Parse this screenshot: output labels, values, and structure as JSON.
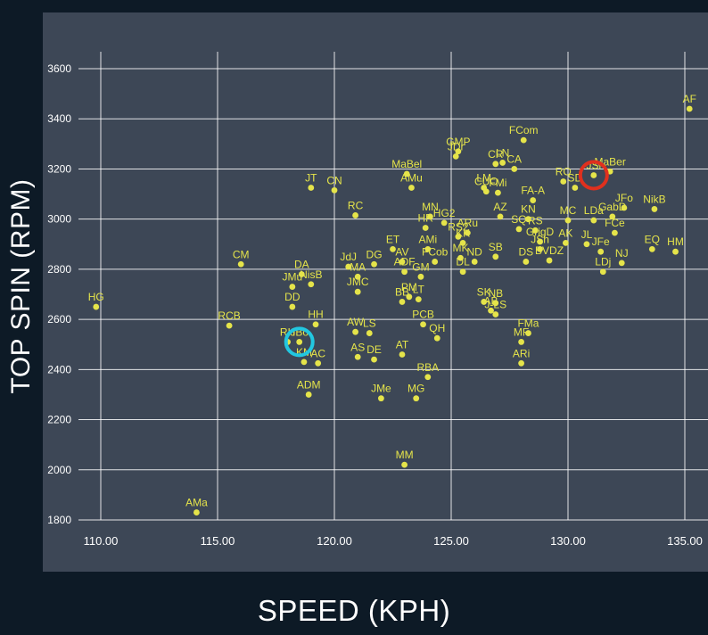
{
  "chart_data": {
    "type": "scatter",
    "xlabel": "SPEED (KPH)",
    "ylabel": "TOP SPIN (RPM)",
    "xlim": [
      108.5,
      135.5
    ],
    "ylim": [
      1760,
      3760
    ],
    "xticks": [
      "110.00",
      "115.00",
      "120.00",
      "125.00",
      "130.00",
      "135.00"
    ],
    "xtick_values": [
      110,
      115,
      120,
      125,
      130,
      135
    ],
    "yticks": [
      "1800",
      "2000",
      "2200",
      "2400",
      "2600",
      "2800",
      "3000",
      "3200",
      "3400",
      "3600"
    ],
    "ytick_values": [
      1800,
      2000,
      2200,
      2400,
      2600,
      2800,
      3000,
      3200,
      3400,
      3600
    ],
    "grid": true,
    "point_color": "#e5e44a",
    "points": [
      {
        "label": "AF",
        "x": 135.2,
        "y": 3440
      },
      {
        "label": "FCom",
        "x": 128.1,
        "y": 3315
      },
      {
        "label": "GMP",
        "x": 125.3,
        "y": 3270
      },
      {
        "label": "JDr",
        "x": 125.2,
        "y": 3250
      },
      {
        "label": "CR",
        "x": 126.9,
        "y": 3220
      },
      {
        "label": "LN",
        "x": 127.2,
        "y": 3225
      },
      {
        "label": "CA",
        "x": 127.7,
        "y": 3200
      },
      {
        "label": "JSi",
        "x": 131.1,
        "y": 3175
      },
      {
        "label": "MaBer",
        "x": 131.8,
        "y": 3190
      },
      {
        "label": "MaBel",
        "x": 123.1,
        "y": 3180
      },
      {
        "label": "AMu",
        "x": 123.3,
        "y": 3125
      },
      {
        "label": "JT",
        "x": 119.0,
        "y": 3125
      },
      {
        "label": "CN",
        "x": 120.0,
        "y": 3115
      },
      {
        "label": "LM",
        "x": 126.4,
        "y": 3125
      },
      {
        "label": "CUO",
        "x": 126.5,
        "y": 3110
      },
      {
        "label": "FMi",
        "x": 127.0,
        "y": 3105
      },
      {
        "label": "RO",
        "x": 129.8,
        "y": 3150
      },
      {
        "label": "SD",
        "x": 130.3,
        "y": 3125
      },
      {
        "label": "FA-A",
        "x": 128.5,
        "y": 3075
      },
      {
        "label": "JFo",
        "x": 132.4,
        "y": 3045
      },
      {
        "label": "NikB",
        "x": 133.7,
        "y": 3040
      },
      {
        "label": "RC",
        "x": 120.9,
        "y": 3015
      },
      {
        "label": "MN",
        "x": 124.1,
        "y": 3010
      },
      {
        "label": "AZ",
        "x": 127.1,
        "y": 3010
      },
      {
        "label": "KN",
        "x": 128.3,
        "y": 3000
      },
      {
        "label": "MC",
        "x": 130.0,
        "y": 2995
      },
      {
        "label": "GabD",
        "x": 131.9,
        "y": 3010
      },
      {
        "label": "LDa",
        "x": 131.1,
        "y": 2995
      },
      {
        "label": "HR",
        "x": 123.9,
        "y": 2965
      },
      {
        "label": "HG2",
        "x": 124.7,
        "y": 2985
      },
      {
        "label": "ARu",
        "x": 125.7,
        "y": 2945
      },
      {
        "label": "SQ",
        "x": 127.9,
        "y": 2960
      },
      {
        "label": "RS",
        "x": 128.6,
        "y": 2955
      },
      {
        "label": "AK",
        "x": 129.9,
        "y": 2905
      },
      {
        "label": "JL",
        "x": 130.8,
        "y": 2900
      },
      {
        "label": "FCe",
        "x": 132.0,
        "y": 2945
      },
      {
        "label": "EQ",
        "x": 133.6,
        "y": 2880
      },
      {
        "label": "HM",
        "x": 134.6,
        "y": 2870
      },
      {
        "label": "JFe",
        "x": 131.4,
        "y": 2870
      },
      {
        "label": "NJ",
        "x": 132.3,
        "y": 2825
      },
      {
        "label": "LDj",
        "x": 131.5,
        "y": 2790
      },
      {
        "label": "RS2",
        "x": 125.3,
        "y": 2930
      },
      {
        "label": "KK",
        "x": 125.5,
        "y": 2905
      },
      {
        "label": "AMi",
        "x": 124.0,
        "y": 2880
      },
      {
        "label": "GrigD",
        "x": 128.8,
        "y": 2910
      },
      {
        "label": "JSh",
        "x": 128.8,
        "y": 2880
      },
      {
        "label": "ET",
        "x": 122.5,
        "y": 2880
      },
      {
        "label": "CM",
        "x": 116.0,
        "y": 2820
      },
      {
        "label": "DA",
        "x": 118.6,
        "y": 2780
      },
      {
        "label": "JdJ",
        "x": 120.6,
        "y": 2810
      },
      {
        "label": "DG",
        "x": 121.7,
        "y": 2820
      },
      {
        "label": "AV",
        "x": 122.9,
        "y": 2830
      },
      {
        "label": "FCob",
        "x": 124.3,
        "y": 2830
      },
      {
        "label": "MK",
        "x": 125.4,
        "y": 2845
      },
      {
        "label": "SB",
        "x": 126.9,
        "y": 2850
      },
      {
        "label": "DS",
        "x": 128.2,
        "y": 2830
      },
      {
        "label": "ND",
        "x": 126.0,
        "y": 2830
      },
      {
        "label": "BVDZ",
        "x": 129.2,
        "y": 2835
      },
      {
        "label": "ADF",
        "x": 123.0,
        "y": 2790
      },
      {
        "label": "GM",
        "x": 123.7,
        "y": 2770
      },
      {
        "label": "DL",
        "x": 125.5,
        "y": 2790
      },
      {
        "label": "JMu",
        "x": 118.2,
        "y": 2730
      },
      {
        "label": "NisB",
        "x": 119.0,
        "y": 2740
      },
      {
        "label": "MA",
        "x": 121.0,
        "y": 2770
      },
      {
        "label": "JMC",
        "x": 121.0,
        "y": 2710
      },
      {
        "label": "BB",
        "x": 122.9,
        "y": 2670
      },
      {
        "label": "PM",
        "x": 123.2,
        "y": 2690
      },
      {
        "label": "LT",
        "x": 123.6,
        "y": 2680
      },
      {
        "label": "DD",
        "x": 118.2,
        "y": 2650
      },
      {
        "label": "HG",
        "x": 109.8,
        "y": 2650
      },
      {
        "label": "RCB",
        "x": 115.5,
        "y": 2575
      },
      {
        "label": "HH",
        "x": 119.2,
        "y": 2580
      },
      {
        "label": "SK",
        "x": 126.4,
        "y": 2670
      },
      {
        "label": "NB",
        "x": 126.9,
        "y": 2665
      },
      {
        "label": "AB",
        "x": 126.7,
        "y": 2635
      },
      {
        "label": "J-LS",
        "x": 126.9,
        "y": 2620
      },
      {
        "label": "PCB",
        "x": 123.8,
        "y": 2580
      },
      {
        "label": "FMa",
        "x": 128.3,
        "y": 2545
      },
      {
        "label": "AW",
        "x": 120.9,
        "y": 2550
      },
      {
        "label": "LS",
        "x": 121.5,
        "y": 2545
      },
      {
        "label": "QH",
        "x": 124.4,
        "y": 2525
      },
      {
        "label": "MF",
        "x": 128.0,
        "y": 2510
      },
      {
        "label": "RH",
        "x": 118.0,
        "y": 2510
      },
      {
        "label": "JBo",
        "x": 118.5,
        "y": 2510
      },
      {
        "label": "AT",
        "x": 122.9,
        "y": 2460
      },
      {
        "label": "AS",
        "x": 121.0,
        "y": 2450
      },
      {
        "label": "DE",
        "x": 121.7,
        "y": 2440
      },
      {
        "label": "AC",
        "x": 119.3,
        "y": 2425
      },
      {
        "label": "KM",
        "x": 118.7,
        "y": 2430
      },
      {
        "label": "ARi",
        "x": 128.0,
        "y": 2425
      },
      {
        "label": "RBA",
        "x": 124.0,
        "y": 2370
      },
      {
        "label": "ADM",
        "x": 118.9,
        "y": 2300
      },
      {
        "label": "JMe",
        "x": 122.0,
        "y": 2285
      },
      {
        "label": "MG",
        "x": 123.5,
        "y": 2285
      },
      {
        "label": "MM",
        "x": 123.0,
        "y": 2020
      },
      {
        "label": "AMa",
        "x": 114.1,
        "y": 1830
      }
    ]
  },
  "highlights": [
    {
      "label": "JSi",
      "color": "#e0301e"
    },
    {
      "label": "JBo",
      "color": "#22c7e0"
    }
  ]
}
